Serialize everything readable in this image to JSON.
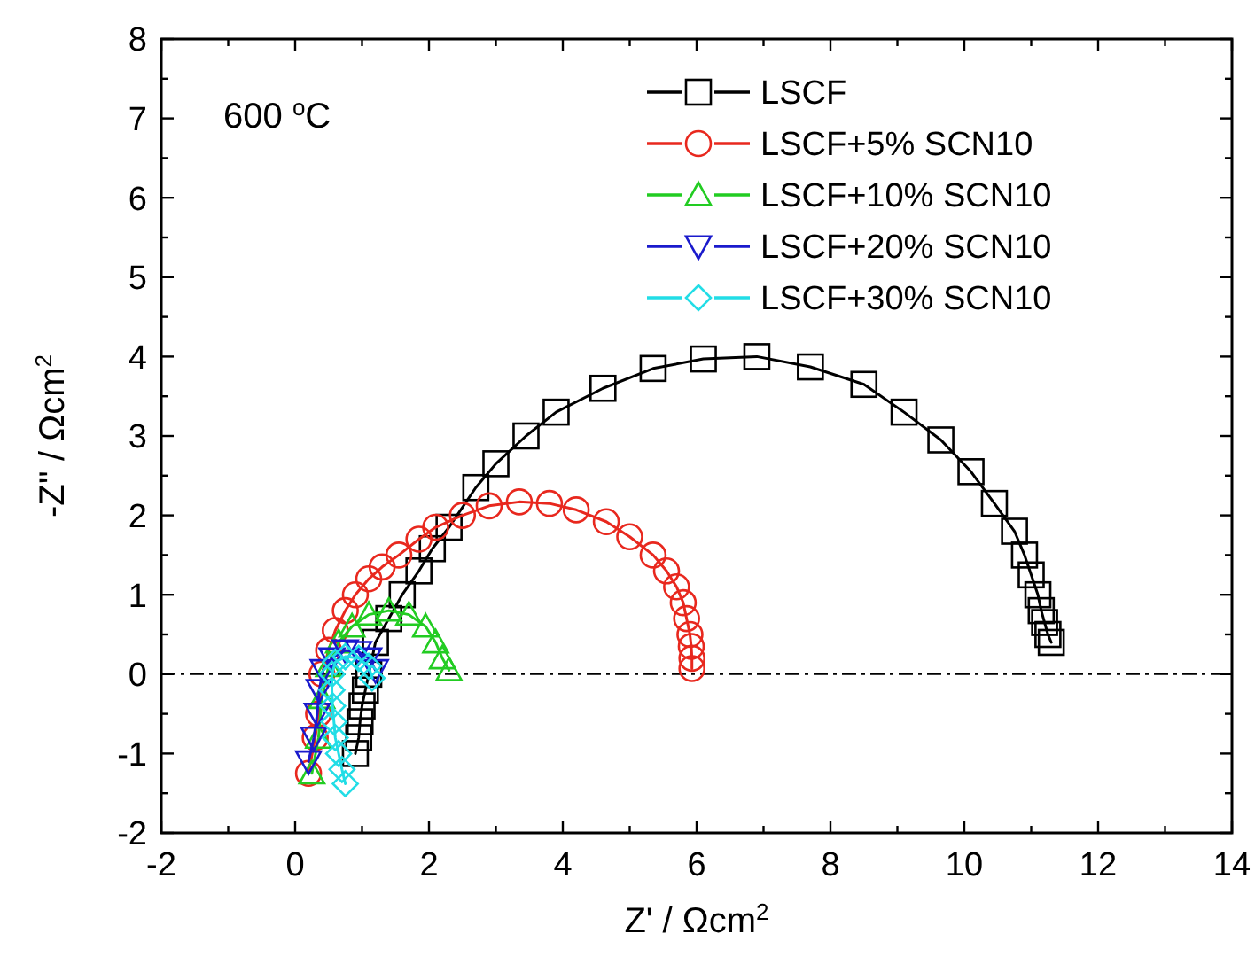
{
  "chart_data": {
    "type": "line",
    "xlabel": "Z' / Ωcm$^{2}$",
    "ylabel": "-Z'' / Ωcm$^{2}$",
    "annotations": [
      "600 $^{o}$C"
    ],
    "xlim": [
      -2,
      14
    ],
    "ylim": [
      -2,
      8
    ],
    "xticks": [
      -2,
      {
        "value": -1,
        "label": null
      },
      0,
      {
        "value": 1,
        "label": null
      },
      2,
      {
        "value": 3,
        "label": null
      },
      4,
      {
        "value": 5,
        "label": null
      },
      6,
      {
        "value": 7,
        "label": null
      },
      8,
      {
        "value": 9,
        "label": null
      },
      10,
      {
        "value": 11,
        "label": null
      },
      12,
      {
        "value": 13,
        "label": null
      },
      14
    ],
    "yticks": [
      -2,
      {
        "value": -1.5,
        "label": null
      },
      -1,
      {
        "value": -0.5,
        "label": null
      },
      0,
      {
        "value": 0.5,
        "label": null
      },
      1,
      {
        "value": 1.5,
        "label": null
      },
      2,
      {
        "value": 2.5,
        "label": null
      },
      3,
      {
        "value": 3.5,
        "label": null
      },
      4,
      {
        "value": 4.5,
        "label": null
      },
      5,
      {
        "value": 5.5,
        "label": null
      },
      6,
      {
        "value": 6.5,
        "label": null
      },
      7,
      {
        "value": 7.5,
        "label": null
      },
      8
    ],
    "grid": false,
    "legend": "top right",
    "line_style": "solid",
    "ref_lines": [
      {
        "axis": "y",
        "value": 0,
        "line_style": "dashdot",
        "color": "#000000"
      }
    ],
    "series": [
      {
        "name": "LSCF",
        "color": "#000000",
        "marker": "square",
        "x": [
          0.9,
          0.95,
          0.97,
          1.0,
          1.05,
          1.1,
          1.2,
          1.4,
          1.6,
          1.85,
          2.05,
          2.3,
          2.7,
          3.0,
          3.45,
          3.9,
          4.6,
          5.35,
          6.1,
          6.9,
          7.7,
          8.5,
          9.1,
          9.65,
          10.1,
          10.45,
          10.75,
          10.9,
          11.0,
          11.1,
          11.15,
          11.2,
          11.25,
          11.3
        ],
        "values": [
          -1.0,
          -0.8,
          -0.6,
          -0.4,
          -0.2,
          0.0,
          0.4,
          0.7,
          1.0,
          1.3,
          1.58,
          1.85,
          2.35,
          2.65,
          3.0,
          3.3,
          3.6,
          3.85,
          3.97,
          4.0,
          3.87,
          3.65,
          3.3,
          2.95,
          2.55,
          2.15,
          1.8,
          1.5,
          1.25,
          1.0,
          0.8,
          0.65,
          0.5,
          0.4
        ]
      },
      {
        "name": "LSCF+5% SCN10",
        "color": "#e8281e",
        "marker": "circle",
        "x": [
          0.2,
          0.3,
          0.35,
          0.4,
          0.5,
          0.6,
          0.75,
          0.9,
          1.1,
          1.3,
          1.55,
          1.85,
          2.1,
          2.5,
          2.9,
          3.35,
          3.8,
          4.2,
          4.65,
          5.0,
          5.35,
          5.55,
          5.7,
          5.8,
          5.85,
          5.9,
          5.92,
          5.93,
          5.93
        ],
        "values": [
          -1.25,
          -0.8,
          -0.5,
          0.0,
          0.3,
          0.55,
          0.8,
          1.0,
          1.2,
          1.35,
          1.5,
          1.7,
          1.85,
          2.0,
          2.12,
          2.17,
          2.15,
          2.07,
          1.92,
          1.73,
          1.5,
          1.3,
          1.1,
          0.9,
          0.7,
          0.5,
          0.35,
          0.2,
          0.07
        ]
      },
      {
        "name": "LSCF+10% SCN10",
        "color": "#22cc22",
        "marker": "triangle",
        "x": [
          0.25,
          0.35,
          0.4,
          0.5,
          0.65,
          0.85,
          1.1,
          1.4,
          1.7,
          1.95,
          2.1,
          2.2,
          2.3
        ],
        "values": [
          -1.25,
          -0.8,
          -0.3,
          0.1,
          0.4,
          0.6,
          0.75,
          0.8,
          0.75,
          0.6,
          0.4,
          0.2,
          0.05
        ]
      },
      {
        "name": "LSCF+20% SCN10",
        "color": "#1a1acc",
        "marker": "triangle-down",
        "x": [
          0.2,
          0.28,
          0.33,
          0.36,
          0.42,
          0.55,
          0.75,
          0.95,
          1.1,
          1.2
        ],
        "values": [
          -1.1,
          -0.8,
          -0.5,
          -0.2,
          0.05,
          0.2,
          0.3,
          0.28,
          0.2,
          0.05
        ]
      },
      {
        "name": "LSCF+30% SCN10",
        "color": "#22dde6",
        "marker": "diamond",
        "x": [
          0.75,
          0.7,
          0.65,
          0.6,
          0.58,
          0.56,
          0.55,
          0.55,
          0.6,
          0.75,
          0.95,
          1.1,
          1.15
        ],
        "values": [
          -1.38,
          -1.2,
          -1.0,
          -0.8,
          -0.6,
          -0.4,
          -0.2,
          0.0,
          0.15,
          0.22,
          0.2,
          0.1,
          -0.05
        ]
      }
    ]
  }
}
